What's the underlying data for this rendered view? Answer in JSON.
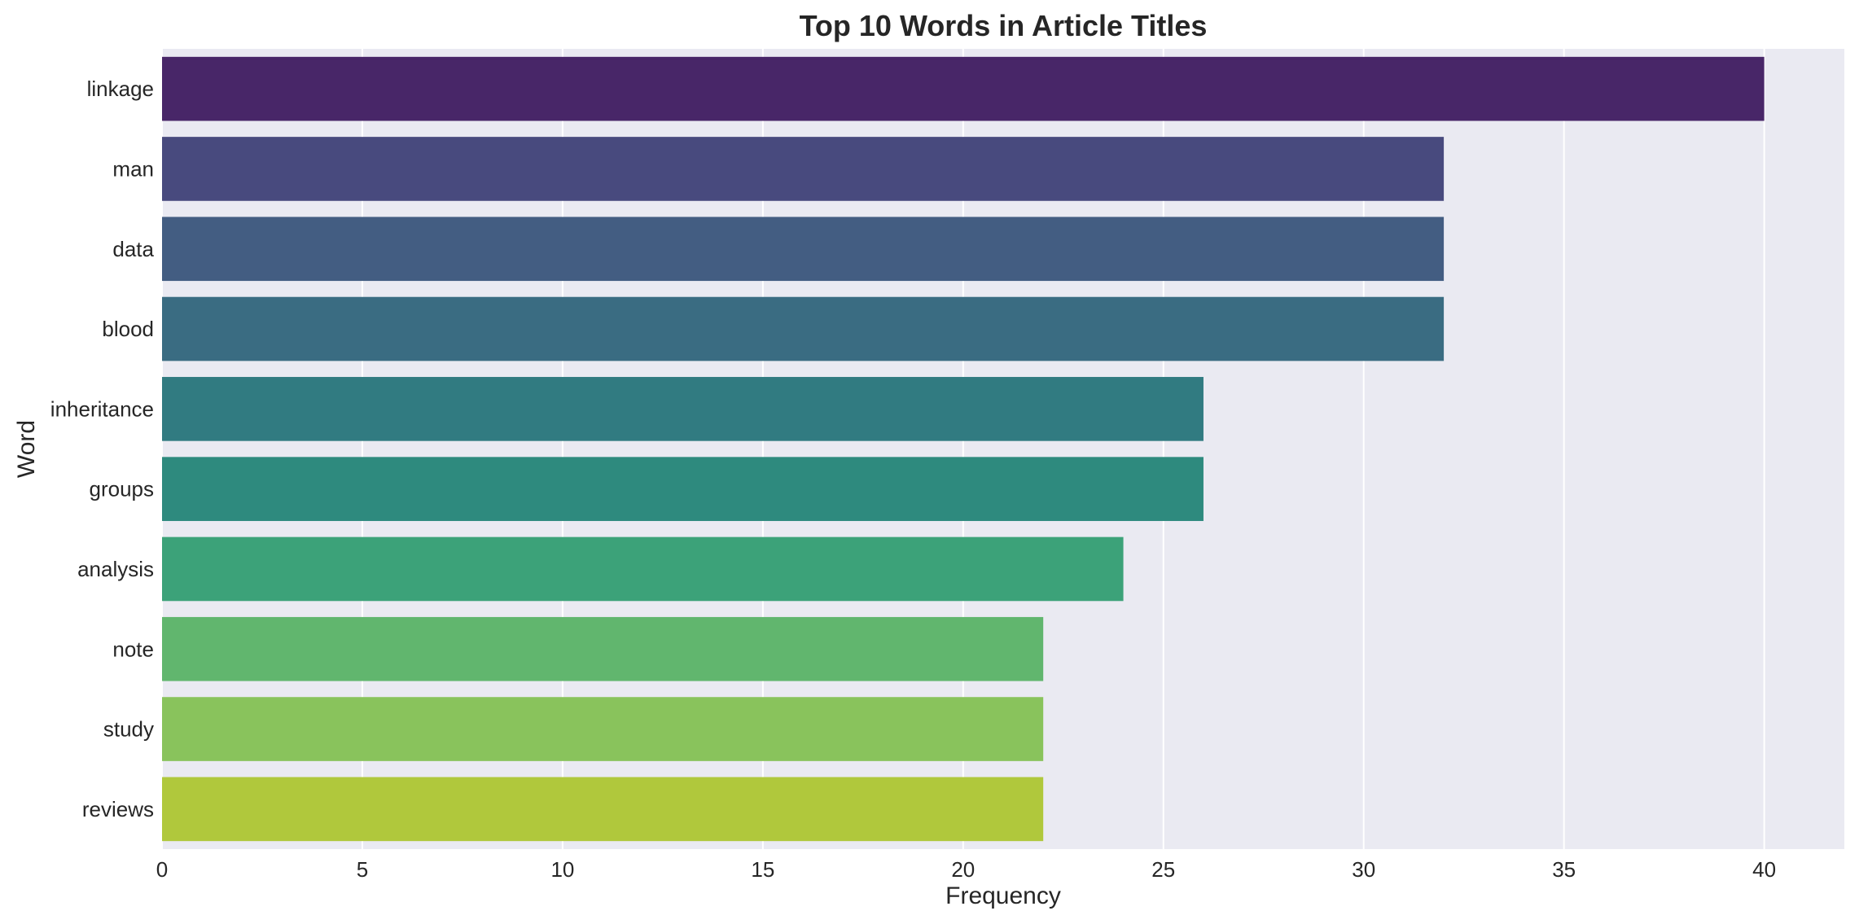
{
  "chart_data": {
    "type": "bar",
    "orientation": "horizontal",
    "title": "Top 10 Words in Article Titles",
    "xlabel": "Frequency",
    "ylabel": "Word",
    "categories": [
      "linkage",
      "man",
      "data",
      "blood",
      "inheritance",
      "groups",
      "analysis",
      "note",
      "study",
      "reviews"
    ],
    "values": [
      40,
      32,
      32,
      32,
      26,
      26,
      24,
      22,
      22,
      22
    ],
    "colors": [
      "#482668",
      "#484a7e",
      "#435d82",
      "#3a6c82",
      "#317b81",
      "#2e8a7e",
      "#3ca279",
      "#61b66e",
      "#89c35c",
      "#b0c83c"
    ],
    "xlim": [
      0,
      42
    ],
    "xticks": [
      0,
      5,
      10,
      15,
      20,
      25,
      30,
      35,
      40
    ],
    "grid": true,
    "background": "#eaeaf2",
    "grid_color": "#ffffff"
  }
}
